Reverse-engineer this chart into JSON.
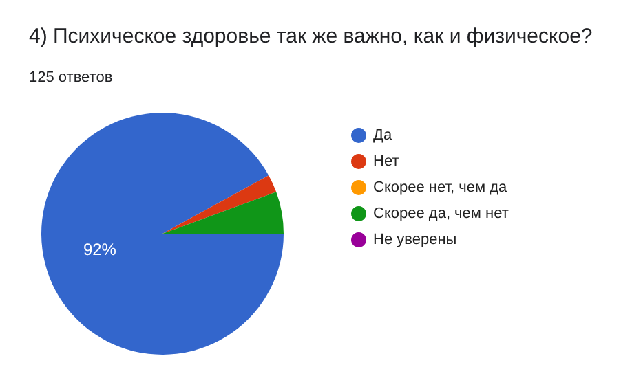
{
  "chart_data": {
    "type": "pie",
    "title": "4) Психическое здоровье так же важно, как и физическое?",
    "subtitle": "125 ответов",
    "categories": [
      "Да",
      "Нет",
      "Скорее нет, чем да",
      "Скорее да, чем нет",
      "Не уверены"
    ],
    "values": [
      92,
      2.4,
      0,
      5.6,
      0
    ],
    "colors": [
      "#3366cc",
      "#dc3912",
      "#ff9900",
      "#109618",
      "#990099"
    ],
    "value_labels": [
      "92%",
      null,
      null,
      null,
      null
    ],
    "legend": "right"
  }
}
